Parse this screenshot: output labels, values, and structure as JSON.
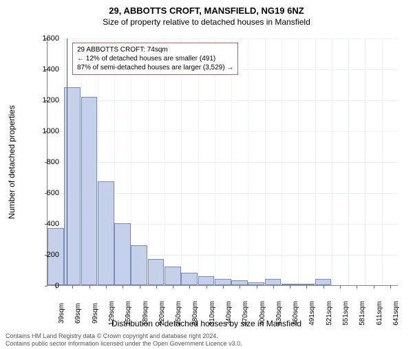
{
  "title_main": "29, ABBOTTS CROFT, MANSFIELD, NG19 6NZ",
  "title_sub": "Size of property relative to detached houses in Mansfield",
  "y_label": "Number of detached properties",
  "x_label": "Distribution of detached houses by size in Mansfield",
  "chart": {
    "type": "histogram",
    "y_max": 1600,
    "y_ticks": [
      0,
      200,
      400,
      600,
      800,
      1000,
      1200,
      1400,
      1600
    ],
    "x_categories": [
      "39sqm",
      "69sqm",
      "99sqm",
      "129sqm",
      "159sqm",
      "189sqm",
      "220sqm",
      "250sqm",
      "280sqm",
      "310sqm",
      "340sqm",
      "370sqm",
      "400sqm",
      "430sqm",
      "460sqm",
      "491sqm",
      "521sqm",
      "551sqm",
      "581sqm",
      "611sqm",
      "641sqm"
    ],
    "values": [
      370,
      1280,
      1220,
      670,
      400,
      260,
      170,
      120,
      80,
      60,
      40,
      30,
      20,
      40,
      5,
      10,
      40,
      0,
      0,
      0,
      0
    ],
    "bar_fill": "#c5d0ea",
    "bar_border": "#7a8bb8",
    "grid_color": "#eef1f6",
    "marker_position": 1.15,
    "marker_color": "#e02020"
  },
  "annotation": {
    "line1": "29 ABBOTTS CROFT: 74sqm",
    "line2": "← 12% of detached houses are smaller (491)",
    "line3": "87% of semi-detached houses are larger (3,529) →",
    "border_color": "#c06060"
  },
  "footer_line1": "Contains HM Land Registry data © Crown copyright and database right 2024.",
  "footer_line2": "Contains public sector information licensed under the Open Government Licence v3.0."
}
